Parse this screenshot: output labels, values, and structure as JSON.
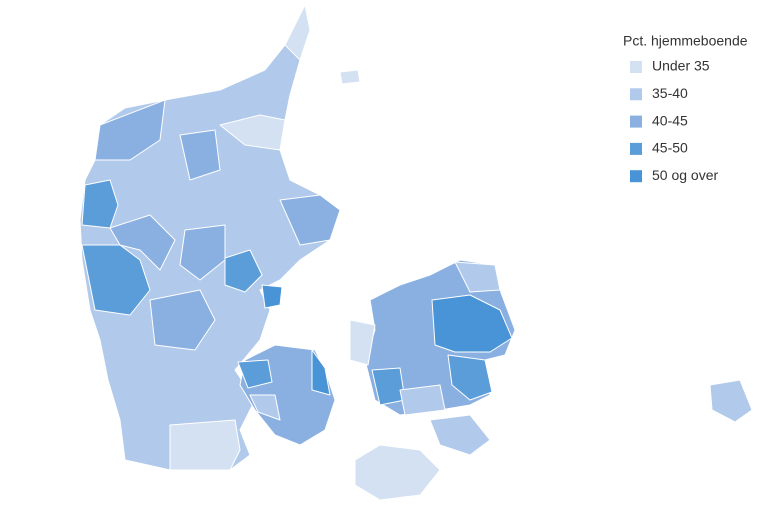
{
  "legend": {
    "title": "Pct. hjemmeboende",
    "items": [
      {
        "label": "Under 35",
        "color": "#d3e1f3"
      },
      {
        "label": "35-40",
        "color": "#b1caeb"
      },
      {
        "label": "40-45",
        "color": "#8ab0e1"
      },
      {
        "label": "45-50",
        "color": "#5a9dd9"
      },
      {
        "label": "50 og over",
        "color": "#4894d6"
      }
    ]
  }
}
